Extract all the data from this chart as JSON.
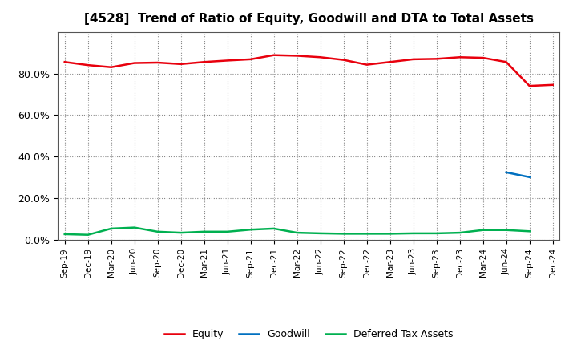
{
  "title": "[4528]  Trend of Ratio of Equity, Goodwill and DTA to Total Assets",
  "x_labels": [
    "Sep-19",
    "Dec-19",
    "Mar-20",
    "Jun-20",
    "Sep-20",
    "Dec-20",
    "Mar-21",
    "Jun-21",
    "Sep-21",
    "Dec-21",
    "Mar-22",
    "Jun-22",
    "Sep-22",
    "Dec-22",
    "Mar-23",
    "Jun-23",
    "Sep-23",
    "Dec-23",
    "Mar-24",
    "Jun-24",
    "Sep-24",
    "Dec-24"
  ],
  "equity": [
    85.5,
    84.0,
    83.0,
    85.0,
    85.2,
    84.5,
    85.5,
    86.2,
    86.8,
    88.8,
    88.5,
    87.8,
    86.5,
    84.2,
    85.5,
    86.8,
    87.0,
    87.8,
    87.5,
    85.5,
    74.0,
    74.5
  ],
  "goodwill": [
    null,
    null,
    null,
    null,
    null,
    null,
    null,
    null,
    null,
    null,
    null,
    null,
    null,
    null,
    null,
    null,
    null,
    null,
    null,
    32.5,
    30.2,
    null
  ],
  "dta": [
    2.8,
    2.5,
    5.5,
    6.0,
    4.0,
    3.5,
    4.0,
    4.0,
    5.0,
    5.5,
    3.5,
    3.2,
    3.0,
    3.0,
    3.0,
    3.2,
    3.2,
    3.5,
    4.8,
    4.8,
    4.2,
    null
  ],
  "equity_color": "#e8000d",
  "goodwill_color": "#0070c0",
  "dta_color": "#00b050",
  "background_color": "#ffffff",
  "grid_color": "#888888",
  "ylim": [
    0,
    100
  ],
  "yticks": [
    0,
    20,
    40,
    60,
    80
  ],
  "ytick_labels": [
    "0.0%",
    "20.0%",
    "40.0%",
    "60.0%",
    "80.0%"
  ]
}
